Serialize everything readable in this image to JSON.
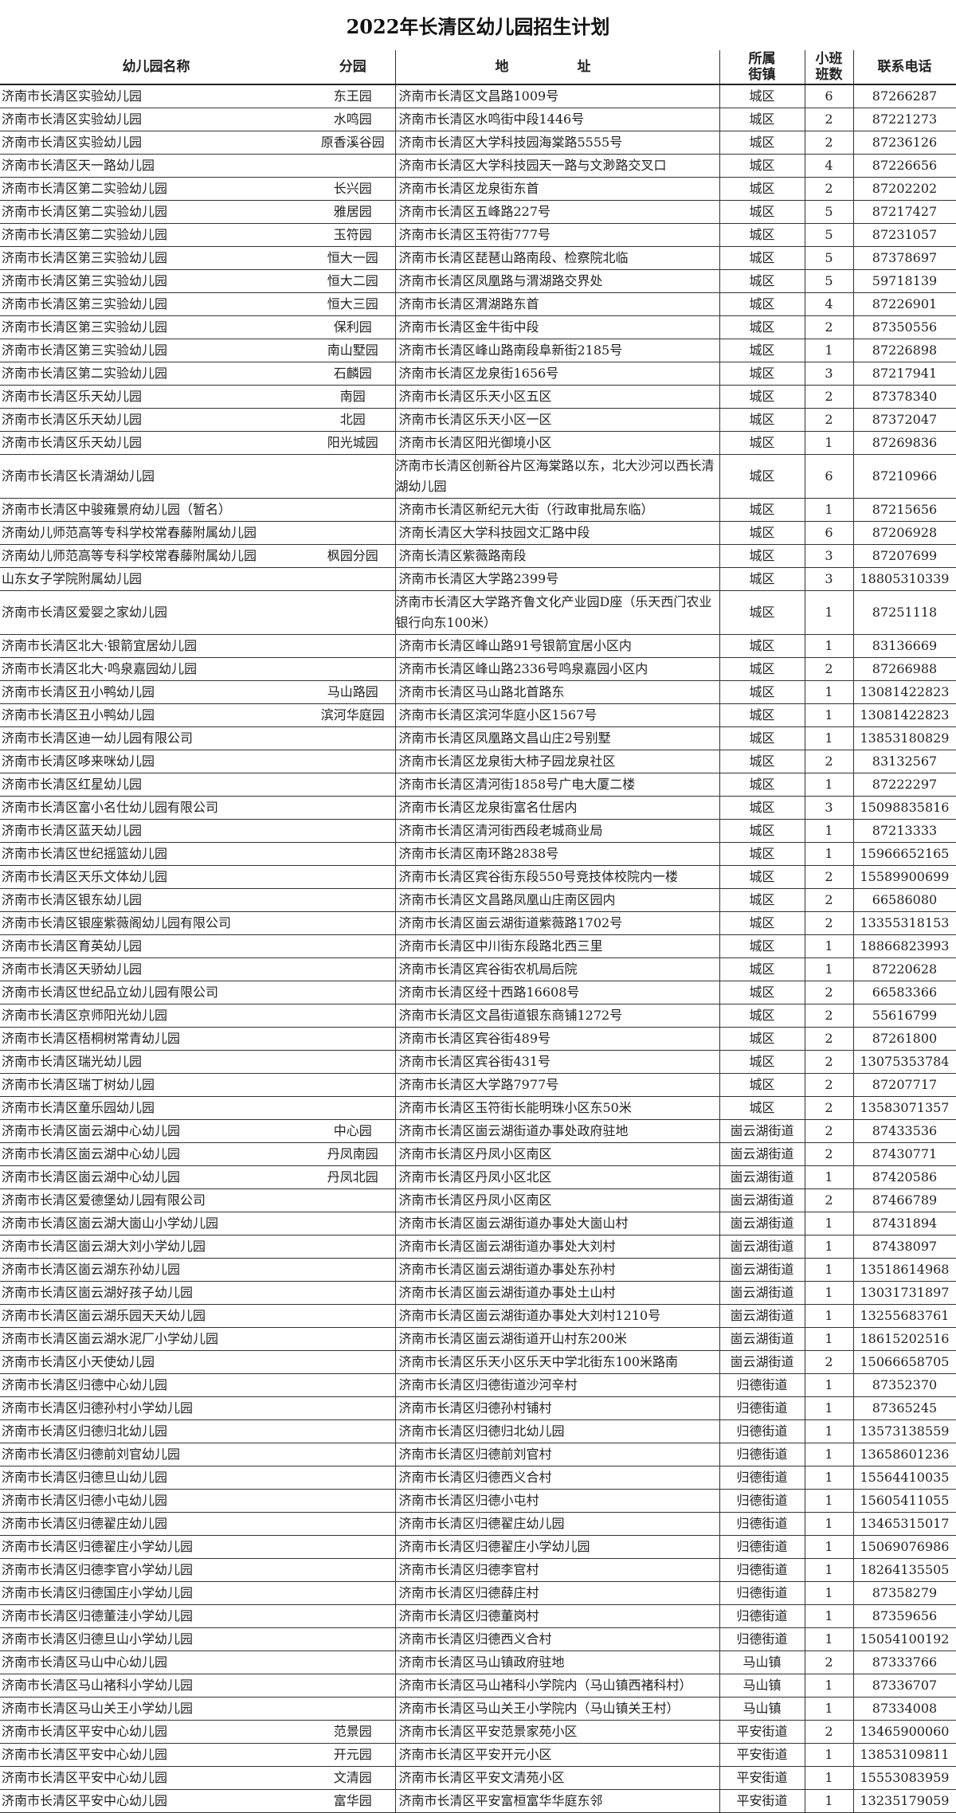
{
  "title": "2022年长清区幼儿园招生计划",
  "headers": {
    "name": "幼儿园名称",
    "branch": "分园",
    "address": "地 址",
    "street": "所属街镇",
    "classes": "小班班数",
    "phone": "联系电话"
  },
  "rows": [
    [
      "济南市长清区实验幼儿园",
      "东王园",
      "济南市长清区文昌路1009号",
      "城区",
      "6",
      "87266287"
    ],
    [
      "济南市长清区实验幼儿园",
      "水鸣园",
      "济南市长清区水鸣街中段1446号",
      "城区",
      "2",
      "87221273"
    ],
    [
      "济南市长清区实验幼儿园",
      "原香溪谷园",
      "济南市长清区大学科技园海棠路5555号",
      "城区",
      "2",
      "87236126"
    ],
    [
      "济南市长清区天一路幼儿园",
      "",
      "济南市长清区大学科技园天一路与文渺路交叉口",
      "城区",
      "4",
      "87226656"
    ],
    [
      "济南市长清区第二实验幼儿园",
      "长兴园",
      "济南市长清区龙泉街东首",
      "城区",
      "2",
      "87202202"
    ],
    [
      "济南市长清区第二实验幼儿园",
      "雅居园",
      "济南市长清区五峰路227号",
      "城区",
      "5",
      "87217427"
    ],
    [
      "济南市长清区第二实验幼儿园",
      "玉符园",
      "济南市长清区玉符街777号",
      "城区",
      "5",
      "87231057"
    ],
    [
      "济南市长清区第三实验幼儿园",
      "恒大一园",
      "济南市长清区琵琶山路南段、检察院北临",
      "城区",
      "5",
      "87378697"
    ],
    [
      "济南市长清区第三实验幼儿园",
      "恒大二园",
      "济南市长清区凤凰路与渭湖路交界处",
      "城区",
      "5",
      "59718139"
    ],
    [
      "济南市长清区第三实验幼儿园",
      "恒大三园",
      "济南市长清区渭湖路东首",
      "城区",
      "4",
      "87226901"
    ],
    [
      "济南市长清区第三实验幼儿园",
      "保利园",
      "济南市长清区金牛街中段",
      "城区",
      "2",
      "87350556"
    ],
    [
      "济南市长清区第三实验幼儿园",
      "南山墅园",
      "济南市长清区峰山路南段阜新街2185号",
      "城区",
      "1",
      "87226898"
    ],
    [
      "济南市长清区第二实验幼儿园",
      "石麟园",
      "济南市长清区龙泉街1656号",
      "城区",
      "3",
      "87217941"
    ],
    [
      "济南市长清区乐天幼儿园",
      "南园",
      "济南市长清区乐天小区五区",
      "城区",
      "2",
      "87378340"
    ],
    [
      "济南市长清区乐天幼儿园",
      "北园",
      "济南市长清区乐天小区一区",
      "城区",
      "2",
      "87372047"
    ],
    [
      "济南市长清区乐天幼儿园",
      "阳光城园",
      "济南市长清区阳光御境小区",
      "城区",
      "1",
      "87269836"
    ],
    [
      "济南市长清区长清湖幼儿园",
      "",
      "济南市长清区创新谷片区海棠路以东，北大沙河以西长清湖幼儿园",
      "城区",
      "6",
      "87210966"
    ],
    [
      "济南市长清区中骏雍景府幼儿园（暂名）",
      "",
      "济南市长清区新纪元大街（行政审批局东临）",
      "城区",
      "1",
      "87215656"
    ],
    [
      "济南幼儿师范高等专科学校常春藤附属幼儿园",
      "",
      "济南长清区大学科技园文汇路中段",
      "城区",
      "6",
      "87206928"
    ],
    [
      "济南幼儿师范高等专科学校常春藤附属幼儿园",
      "枫园分园",
      "济南长清区紫薇路南段",
      "城区",
      "3",
      "87207699"
    ],
    [
      "山东女子学院附属幼儿园",
      "",
      "济南市长清区大学路2399号",
      "城区",
      "3",
      "18805310339"
    ],
    [
      "济南市长清区爱婴之家幼儿园",
      "",
      "济南市长清区大学路齐鲁文化产业园D座（乐天西门农业银行向东100米）",
      "城区",
      "1",
      "87251118"
    ],
    [
      "济南市长清区北大·银箭宜居幼儿园",
      "",
      "济南市长清区峰山路91号银箭宜居小区内",
      "城区",
      "1",
      "83136669"
    ],
    [
      "济南市长清区北大·鸣泉嘉园幼儿园",
      "",
      "济南市长清区峰山路2336号鸣泉嘉园小区内",
      "城区",
      "2",
      "87266988"
    ],
    [
      "济南市长清区丑小鸭幼儿园",
      "马山路园",
      "济南市长清区马山路北首路东",
      "城区",
      "1",
      "13081422823"
    ],
    [
      "济南市长清区丑小鸭幼儿园",
      "滨河华庭园",
      "济南市长清区滨河华庭小区1567号",
      "城区",
      "1",
      "13081422823"
    ],
    [
      "济南市长清区迪一幼儿园有限公司",
      "",
      "济南市长清区凤凰路文昌山庄2号别墅",
      "城区",
      "1",
      "13853180829"
    ],
    [
      "济南市长清区哆来咪幼儿园",
      "",
      "济南市长清区龙泉街大柿子园龙泉社区",
      "城区",
      "2",
      "83132567"
    ],
    [
      "济南市长清区红星幼儿园",
      "",
      "济南市长清区清河街1858号广电大厦二楼",
      "城区",
      "1",
      "87222297"
    ],
    [
      "济南市长清区富小名仕幼儿园有限公司",
      "",
      "济南市长清区龙泉街富名仕居内",
      "城区",
      "3",
      "15098835816"
    ],
    [
      "济南市长清区蓝天幼儿园",
      "",
      "济南市长清区清河街西段老城商业局",
      "城区",
      "1",
      "87213333"
    ],
    [
      "济南市长清区世纪摇篮幼儿园",
      "",
      "济南市长清区南环路2838号",
      "城区",
      "1",
      "15966652165"
    ],
    [
      "济南市长清区天乐文体幼儿园",
      "",
      "济南市长清区宾谷街东段550号竞技体校院内一楼",
      "城区",
      "2",
      "15589900699"
    ],
    [
      "济南市长清区银东幼儿园",
      "",
      "济南市长清区文昌路凤凰山庄南区园内",
      "城区",
      "2",
      "66586080"
    ],
    [
      "济南市长清区银座紫薇阁幼儿园有限公司",
      "",
      "济南市长清区崮云湖街道紫薇路1702号",
      "城区",
      "2",
      "13355318153"
    ],
    [
      "济南市长清区育英幼儿园",
      "",
      "济南市长清区中川街东段路北西三里",
      "城区",
      "1",
      "18866823993"
    ],
    [
      "济南市长清区天骄幼儿园",
      "",
      "济南市长清区宾谷街农机局后院",
      "城区",
      "1",
      "87220628"
    ],
    [
      "济南市长清区世纪品立幼儿园有限公司",
      "",
      "济南市长清区经十西路16608号",
      "城区",
      "2",
      "66583366"
    ],
    [
      "济南市长清区京师阳光幼儿园",
      "",
      "济南市长清区文昌街道银东商铺1272号",
      "城区",
      "2",
      "55616799"
    ],
    [
      "济南市长清区梧桐树常青幼儿园",
      "",
      "济南市长清区宾谷街489号",
      "城区",
      "2",
      "87261800"
    ],
    [
      "济南市长清区瑞光幼儿园",
      "",
      "济南市长清区宾谷街431号",
      "城区",
      "2",
      "13075353784"
    ],
    [
      "济南市长清区瑞丁树幼儿园",
      "",
      "济南市长清区大学路7977号",
      "城区",
      "2",
      "87207717"
    ],
    [
      "济南市长清区童乐园幼儿园",
      "",
      "济南市长清区玉符街长能明珠小区东50米",
      "城区",
      "2",
      "13583071357"
    ],
    [
      "济南市长清区崮云湖中心幼儿园",
      "中心园",
      "济南市长清区崮云湖街道办事处政府驻地",
      "崮云湖街道",
      "2",
      "87433536"
    ],
    [
      "济南市长清区崮云湖中心幼儿园",
      "丹凤南园",
      "济南市长清区丹凤小区南区",
      "崮云湖街道",
      "2",
      "87430771"
    ],
    [
      "济南市长清区崮云湖中心幼儿园",
      "丹凤北园",
      "济南市长清区丹凤小区北区",
      "崮云湖街道",
      "1",
      "87420586"
    ],
    [
      "济南市长清区爱德堡幼儿园有限公司",
      "",
      "济南市长清区丹凤小区南区",
      "崮云湖街道",
      "2",
      "87466789"
    ],
    [
      "济南市长清区崮云湖大崮山小学幼儿园",
      "",
      "济南市长清区崮云湖街道办事处大崮山村",
      "崮云湖街道",
      "1",
      "87431894"
    ],
    [
      "济南市长清区崮云湖大刘小学幼儿园",
      "",
      "济南市长清区崮云湖街道办事处大刘村",
      "崮云湖街道",
      "1",
      "87438097"
    ],
    [
      "济南市长清区崮云湖东孙幼儿园",
      "",
      "济南市长清区崮云湖街道办事处东孙村",
      "崮云湖街道",
      "1",
      "13518614968"
    ],
    [
      "济南市长清区崮云湖好孩子幼儿园",
      "",
      "济南市长清区崮云湖街道办事处土山村",
      "崮云湖街道",
      "1",
      "13031731897"
    ],
    [
      "济南市长清区崮云湖乐园天天幼儿园",
      "",
      "济南市长清区崮云湖街道办事处大刘村1210号",
      "崮云湖街道",
      "1",
      "13255683761"
    ],
    [
      "济南市长清区崮云湖水泥厂小学幼儿园",
      "",
      "济南市长清区崮云湖街道开山村东200米",
      "崮云湖街道",
      "1",
      "18615202516"
    ],
    [
      "济南市长清区小天使幼儿园",
      "",
      "济南市长清区乐天小区乐天中学北街东100米路南",
      "崮云湖街道",
      "2",
      "15066658705"
    ],
    [
      "济南市长清区归德中心幼儿园",
      "",
      "济南市长清区归德街道沙河辛村",
      "归德街道",
      "1",
      "87352370"
    ],
    [
      "济南市长清区归德孙村小学幼儿园",
      "",
      "济南市长清区归德孙村铺村",
      "归德街道",
      "1",
      "87365245"
    ],
    [
      "济南市长清区归德归北幼儿园",
      "",
      "济南市长清区归德归北幼儿园",
      "归德街道",
      "1",
      "13573138559"
    ],
    [
      "济南市长清区归德前刘官幼儿园",
      "",
      "济南市长清区归德前刘官村",
      "归德街道",
      "1",
      "13658601236"
    ],
    [
      "济南市长清区归德旦山幼儿园",
      "",
      "济南市长清区归德西义合村",
      "归德街道",
      "1",
      "15564410035"
    ],
    [
      "济南市长清区归德小屯幼儿园",
      "",
      "济南市长清区归德小屯村",
      "归德街道",
      "1",
      "15605411055"
    ],
    [
      "济南市长清区归德翟庄幼儿园",
      "",
      "济南市长清区归德翟庄幼儿园",
      "归德街道",
      "1",
      "13465315017"
    ],
    [
      "济南市长清区归德翟庄小学幼儿园",
      "",
      "济南市长清区归德翟庄小学幼儿园",
      "归德街道",
      "1",
      "15069076986"
    ],
    [
      "济南市长清区归德李官小学幼儿园",
      "",
      "济南市长清区归德李官村",
      "归德街道",
      "1",
      "18264135505"
    ],
    [
      "济南市长清区归德国庄小学幼儿园",
      "",
      "济南市长清区归德薛庄村",
      "归德街道",
      "1",
      "87358279"
    ],
    [
      "济南市长清区归德董洼小学幼儿园",
      "",
      "济南市长清区归德董岗村",
      "归德街道",
      "1",
      "87359656"
    ],
    [
      "济南市长清区归德旦山小学幼儿园",
      "",
      "济南市长清区归德西义合村",
      "归德街道",
      "1",
      "15054100192"
    ],
    [
      "济南市长清区马山中心幼儿园",
      "",
      "济南市长清区马山镇政府驻地",
      "马山镇",
      "2",
      "87333766"
    ],
    [
      "济南市长清区马山褚科小学幼儿园",
      "",
      "济南市长清区马山褚科小学院内（马山镇西褚科村）",
      "马山镇",
      "1",
      "87336707"
    ],
    [
      "济南市长清区马山关王小学幼儿园",
      "",
      "济南市长清区马山关王小学院内（马山镇关王村）",
      "马山镇",
      "1",
      "87334008"
    ],
    [
      "济南市长清区平安中心幼儿园",
      "范景园",
      "济南市长清区平安范景家苑小区",
      "平安街道",
      "2",
      "13465900060"
    ],
    [
      "济南市长清区平安中心幼儿园",
      "开元园",
      "济南市长清区平安开元小区",
      "平安街道",
      "1",
      "13853109811"
    ],
    [
      "济南市长清区平安中心幼儿园",
      "文清园",
      "济南市长清区平安文清苑小区",
      "平安街道",
      "1",
      "15553083959"
    ],
    [
      "济南市长清区平安中心幼儿园",
      "富华园",
      "济南市长清区平安富桓富华华庭东邻",
      "平安街道",
      "1",
      "13235179059"
    ]
  ]
}
